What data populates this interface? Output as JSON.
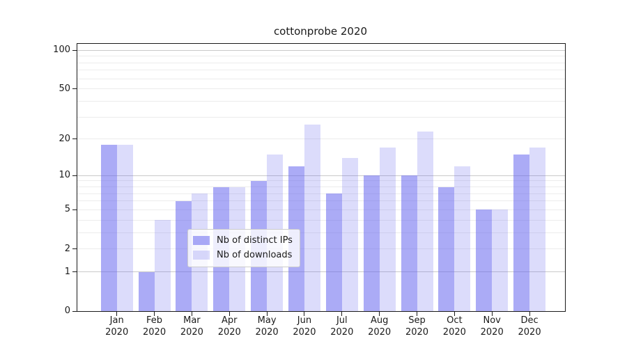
{
  "chart_data": {
    "type": "bar",
    "title": "cottonprobe 2020",
    "categories": [
      "Jan",
      "Feb",
      "Mar",
      "Apr",
      "May",
      "Jun",
      "Jul",
      "Aug",
      "Sep",
      "Oct",
      "Nov",
      "Dec"
    ],
    "category_year": "2020",
    "series": [
      {
        "name": "Nb of distinct IPs",
        "color": "rgba(102,102,238,0.55)",
        "values": [
          18,
          1,
          6,
          8,
          9,
          12,
          7,
          10,
          10,
          8,
          5,
          15
        ]
      },
      {
        "name": "Nb of downloads",
        "color": "rgba(102,102,238,0.23)",
        "values": [
          18,
          4,
          7,
          8,
          15,
          26,
          14,
          17,
          23,
          12,
          5,
          17
        ]
      }
    ],
    "xlabel": "",
    "ylabel": "",
    "yscale": "log1p",
    "ylim": [
      0,
      112
    ],
    "y_ticks": [
      0,
      1,
      2,
      5,
      10,
      20,
      50,
      100
    ],
    "grid": {
      "major_lines": [
        1,
        10,
        100
      ],
      "minor_lines": [
        2,
        3,
        4,
        5,
        6,
        7,
        8,
        9,
        20,
        30,
        40,
        50,
        60,
        70,
        80,
        90
      ],
      "major_color": "#c9c9c9",
      "minor_color": "#ececec"
    },
    "legend_position": "lower center",
    "spine_color": "#1a1a1a",
    "background_color": "#ffffff"
  }
}
